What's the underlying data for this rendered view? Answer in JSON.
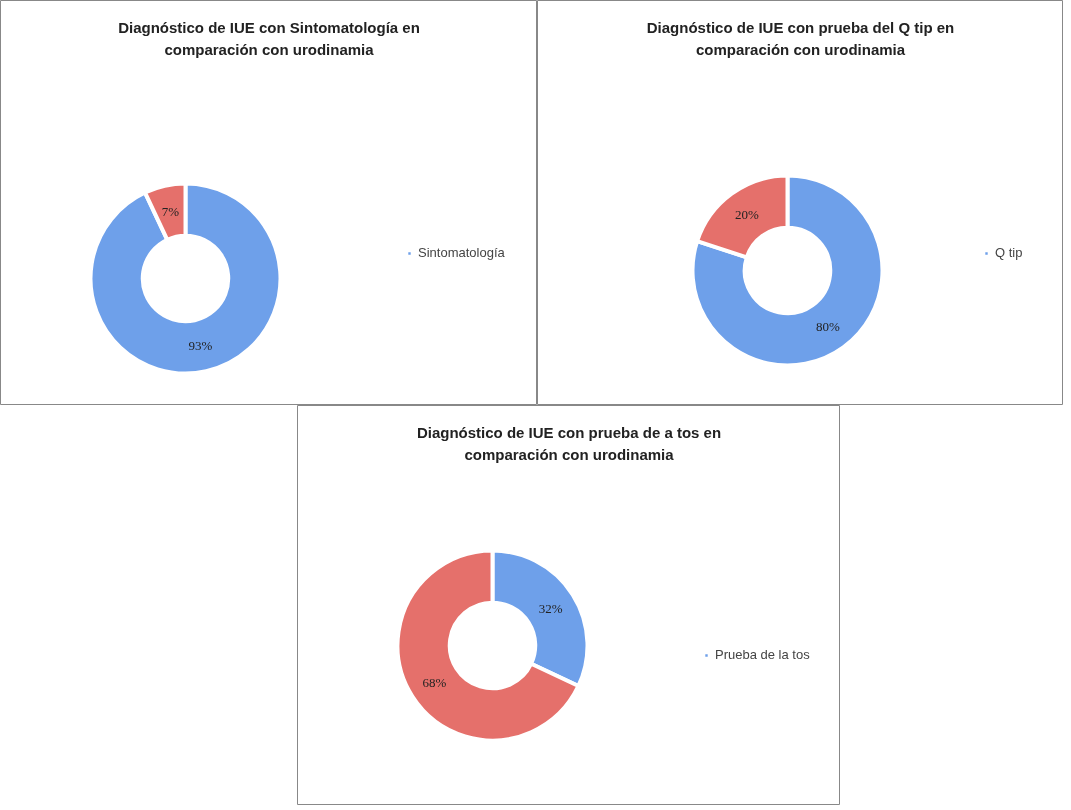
{
  "chart_data": [
    {
      "type": "donut",
      "title": "Diagnóstico de IUE con Sintomatología en comparación con urodinamia",
      "categories": [
        "Sintomatología",
        null
      ],
      "values": [
        93,
        7
      ],
      "colors": [
        "#6ea0ea",
        "#e5706b"
      ],
      "value_labels": [
        "93%",
        "7%"
      ],
      "legend": "right"
    },
    {
      "type": "donut",
      "title": "Diagnóstico de IUE con prueba del Q tip en comparación con urodinamia",
      "categories": [
        "Q tip",
        null
      ],
      "values": [
        80,
        20
      ],
      "colors": [
        "#6ea0ea",
        "#e5706b"
      ],
      "value_labels": [
        "80%",
        "20%"
      ],
      "legend": "right"
    },
    {
      "type": "donut",
      "title": "Diagnóstico de IUE con prueba de a tos en comparación con urodinamia",
      "categories": [
        "Prueba de la tos",
        null
      ],
      "values": [
        32,
        68
      ],
      "colors": [
        "#6ea0ea",
        "#e5706b"
      ],
      "value_labels": [
        "32%",
        "68%"
      ],
      "legend": "right"
    }
  ]
}
